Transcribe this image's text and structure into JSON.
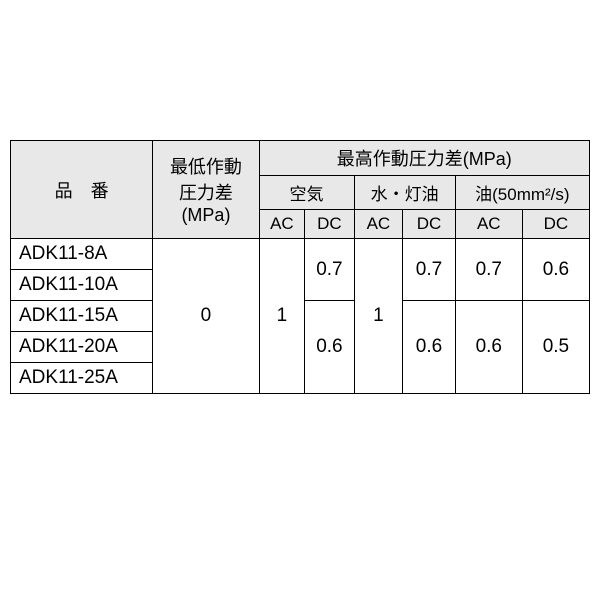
{
  "header": {
    "col_model": "品　番",
    "col_min": "最低作動\n圧力差\n(MPa)",
    "col_max_group": "最高作動圧力差(MPa)",
    "sub_air": "空気",
    "sub_water": "水・灯油",
    "sub_oil": "油(50mm²/s)",
    "ac": "AC",
    "dc": "DC"
  },
  "merged": {
    "min_all": "0",
    "air_ac_all": "1",
    "water_ac_all": "1",
    "air_dc_top": "0.7",
    "air_dc_bot": "0.6",
    "water_dc_top": "0.7",
    "water_dc_bot": "0.6",
    "oil_ac_top": "0.7",
    "oil_ac_bot": "0.6",
    "oil_dc_top": "0.6",
    "oil_dc_bot": "0.5"
  },
  "rows": {
    "r1": "ADK11-8A",
    "r2": "ADK11-10A",
    "r3": "ADK11-15A",
    "r4": "ADK11-20A",
    "r5": "ADK11-25A"
  },
  "style": {
    "header_bg": "#e8e8e8",
    "border_color": "#000000",
    "font_header": 18,
    "font_body": 19
  }
}
